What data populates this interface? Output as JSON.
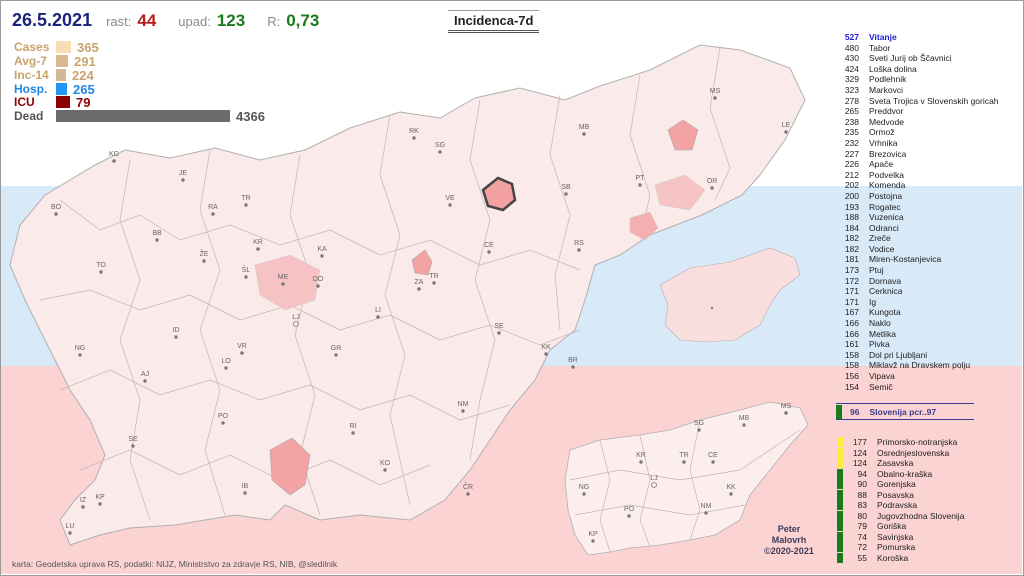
{
  "header": {
    "date": "26.5.2021",
    "rast_label": "rast:",
    "rast_value": "44",
    "upad_label": "upad:",
    "upad_value": "123",
    "r_label": "R:",
    "r_value": "0,73",
    "map_title": "Incidenca-7d"
  },
  "stats": [
    {
      "label": "Cases",
      "value": "365",
      "color": "#f7dcb4",
      "text_color": "#c9a36d",
      "fraction": 0.084
    },
    {
      "label": "Avg-7",
      "value": "291",
      "color": "#d8b88c",
      "text_color": "#c9a36d",
      "fraction": 0.067
    },
    {
      "label": "Inc-14",
      "value": "224",
      "color": "#d3b897",
      "text_color": "#c9a36d",
      "fraction": 0.051
    },
    {
      "label": "Hosp.",
      "value": "265",
      "color": "#2196f3",
      "text_color": "#1e88e5",
      "fraction": 0.061
    },
    {
      "label": "ICU",
      "value": "79",
      "color": "#8b0000",
      "text_color": "#8b0000",
      "fraction": 0.018
    },
    {
      "label": "Dead",
      "value": "4366",
      "color": "#6b6b6b",
      "text_color": "#555555",
      "fraction": 1.0
    }
  ],
  "ranking": [
    {
      "value": "527",
      "name": "Vitanje"
    },
    {
      "value": "480",
      "name": "Tabor"
    },
    {
      "value": "430",
      "name": "Sveti Jurij ob Ščavnici"
    },
    {
      "value": "424",
      "name": "Loška dolina"
    },
    {
      "value": "329",
      "name": "Podlehnik"
    },
    {
      "value": "323",
      "name": "Markovci"
    },
    {
      "value": "278",
      "name": "Sveta Trojica v Slovenskih goricah"
    },
    {
      "value": "265",
      "name": "Preddvor"
    },
    {
      "value": "238",
      "name": "Medvode"
    },
    {
      "value": "235",
      "name": "Ormož"
    },
    {
      "value": "232",
      "name": "Vrhnika"
    },
    {
      "value": "227",
      "name": "Brezovica"
    },
    {
      "value": "226",
      "name": "Apače"
    },
    {
      "value": "212",
      "name": "Podvelka"
    },
    {
      "value": "202",
      "name": "Komenda"
    },
    {
      "value": "200",
      "name": "Postojna"
    },
    {
      "value": "193",
      "name": "Rogatec"
    },
    {
      "value": "188",
      "name": "Vuzenica"
    },
    {
      "value": "184",
      "name": "Odranci"
    },
    {
      "value": "182",
      "name": "Zreče"
    },
    {
      "value": "182",
      "name": "Vodice"
    },
    {
      "value": "181",
      "name": "Miren-Kostanjevica"
    },
    {
      "value": "173",
      "name": "Ptuj"
    },
    {
      "value": "172",
      "name": "Dornava"
    },
    {
      "value": "171",
      "name": "Cerknica"
    },
    {
      "value": "171",
      "name": "Ig"
    },
    {
      "value": "167",
      "name": "Kungota"
    },
    {
      "value": "166",
      "name": "Naklo"
    },
    {
      "value": "166",
      "name": "Metlika"
    },
    {
      "value": "161",
      "name": "Pivka"
    },
    {
      "value": "158",
      "name": "Dol pri Ljubljani"
    },
    {
      "value": "158",
      "name": "Miklavž na Dravskem polju"
    },
    {
      "value": "156",
      "name": "Vipava"
    },
    {
      "value": "154",
      "name": "Semič"
    }
  ],
  "slovenia": {
    "value": "96",
    "label": "Slovenija  pcr..97",
    "color": "#1b7a1b"
  },
  "regions": [
    {
      "value": "177",
      "name": "Primorsko-notranjska",
      "color": "#ffeb3b"
    },
    {
      "value": "124",
      "name": "Osrednjeslovenska",
      "color": "#ffeb3b"
    },
    {
      "value": "124",
      "name": "Zasavska",
      "color": "#ffeb3b"
    },
    {
      "value": "94",
      "name": "Obalno-kraška",
      "color": "#1b7a1b"
    },
    {
      "value": "90",
      "name": "Gorenjska",
      "color": "#1b7a1b"
    },
    {
      "value": "88",
      "name": "Posavska",
      "color": "#1b7a1b"
    },
    {
      "value": "83",
      "name": "Podravska",
      "color": "#1b7a1b"
    },
    {
      "value": "80",
      "name": "Jugovzhodna Slovenija",
      "color": "#1b7a1b"
    },
    {
      "value": "79",
      "name": "Goriška",
      "color": "#1b7a1b"
    },
    {
      "value": "74",
      "name": "Savinjska",
      "color": "#1b7a1b"
    },
    {
      "value": "72",
      "name": "Pomurska",
      "color": "#1b7a1b"
    },
    {
      "value": "55",
      "name": "Koroška",
      "color": "#1b7a1b"
    }
  ],
  "main_map_labels": [
    "KG",
    "JE",
    "BO",
    "RA",
    "TR",
    "BB",
    "ŽE",
    "KR",
    "KA",
    "TO",
    "ŠL",
    "ME",
    "DO",
    "LJ",
    "ID",
    "NG",
    "VR",
    "LO",
    "AJ",
    "GR",
    "PO",
    "SE",
    "IZ",
    "KP",
    "LU",
    "IB",
    "RI",
    "KO",
    "NM",
    "ČR",
    "SE",
    "KK",
    "BR",
    "LI",
    "ZA",
    "TR",
    "CE",
    "VE",
    "SG",
    "RK",
    "MB",
    "SB",
    "RS",
    "PT",
    "OR",
    "MS",
    "LE"
  ],
  "region_map_labels": [
    "MS",
    "SG",
    "MB",
    "KR",
    "TR",
    "CE",
    "LJ",
    "NG",
    "KK",
    "PO",
    "NM",
    "KP"
  ],
  "credit": {
    "line1": "Peter",
    "line2": "Malovrh",
    "line3": "©2020-2021"
  },
  "footer": "karta: Geodetska uprava RS,  podatki: NIJZ, Ministrstvo za zdravje RS, NIB, @sledilnik"
}
